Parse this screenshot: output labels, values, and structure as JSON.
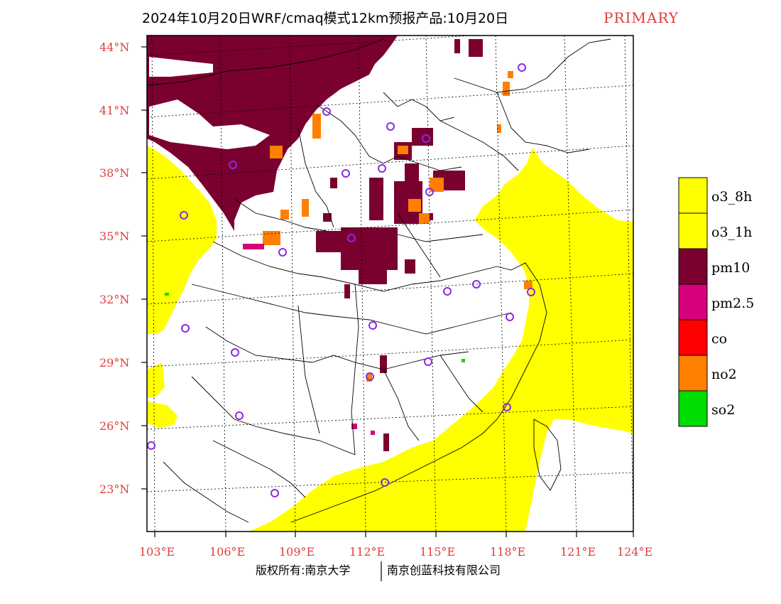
{
  "title": "2024年10月20日WRF/cmaq模式12km预报产品:10月20日",
  "tag": "PRIMARY",
  "lat_labels": [
    "44°N",
    "41°N",
    "38°N",
    "35°N",
    "32°N",
    "29°N",
    "26°N",
    "23°N"
  ],
  "lon_labels": [
    "103°E",
    "106°E",
    "109°E",
    "112°E",
    "115°E",
    "118°E",
    "121°E",
    "124°E"
  ],
  "legend": [
    {
      "label": "o3_8h",
      "color": "#ffff00"
    },
    {
      "label": "o3_1h",
      "color": "#ffff00"
    },
    {
      "label": "pm10",
      "color": "#7a0030"
    },
    {
      "label": "pm2.5",
      "color": "#d6007a"
    },
    {
      "label": "co",
      "color": "#ff0000"
    },
    {
      "label": "no2",
      "color": "#ff7f00"
    },
    {
      "label": "so2",
      "color": "#00dd00"
    }
  ],
  "credit_left": "版权所有:南京大学",
  "credit_right": "南京创蓝科技有限公司",
  "colors": {
    "ozone": "#ffff00",
    "pm10": "#7a0030",
    "pm25": "#d6007a",
    "no2": "#ff7f00",
    "so2": "#00dd00",
    "station": "#8a2be2",
    "label_red": "#e03c3c"
  }
}
